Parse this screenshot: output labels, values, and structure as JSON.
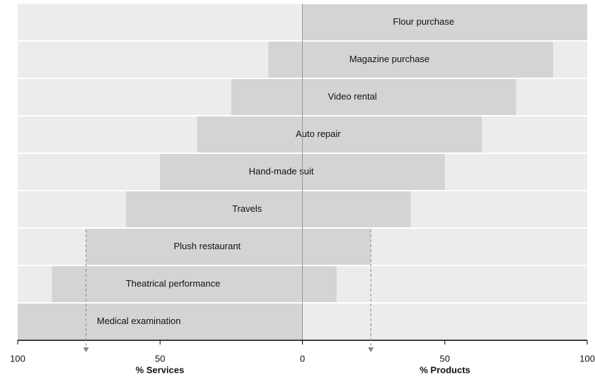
{
  "chart_data": {
    "type": "diverging-bar",
    "categories": [
      "Flour purchase",
      "Magazine purchase",
      "Video rental",
      "Auto repair",
      "Hand-made suit",
      "Travels",
      "Plush restaurant",
      "Theatrical performance",
      "Medical examination"
    ],
    "series": [
      {
        "values": [
          0,
          12,
          25,
          37,
          50,
          62,
          76,
          88,
          100
        ]
      },
      {
        "values": [
          100,
          88,
          75,
          63,
          50,
          38,
          24,
          12,
          0
        ]
      }
    ],
    "color": "#d4d4d4",
    "background": "#ececec",
    "xlim": [
      -100,
      100
    ],
    "xticks": [
      {
        "value": -100,
        "label": "100"
      },
      {
        "value": -50,
        "label": "50"
      },
      0,
      50,
      100
    ],
    "left_axis_label": "% Services",
    "right_axis_label": "% Products",
    "arrow_row": 6
  }
}
